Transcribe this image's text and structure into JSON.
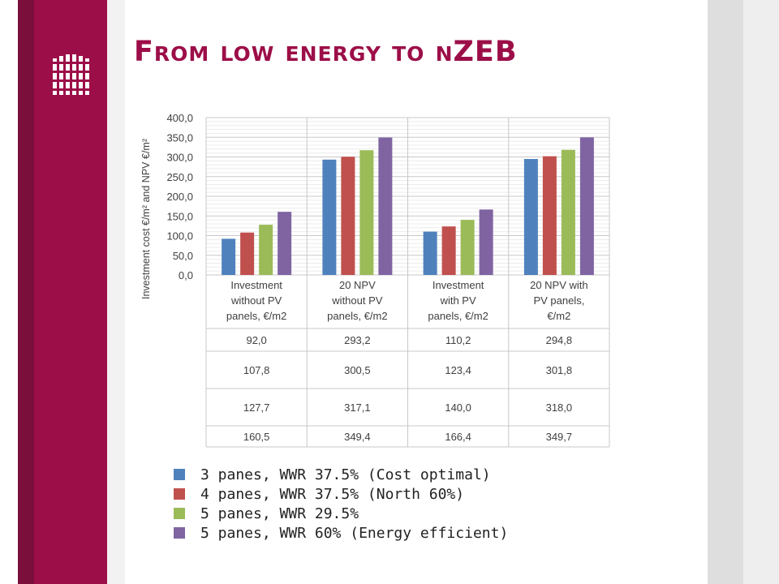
{
  "slide": {
    "title": "From low energy to nZEB"
  },
  "chart_data": {
    "type": "bar",
    "title": "",
    "xlabel": "",
    "ylabel": "Investment cost €/m² and NPV €/m²",
    "ylim": [
      0,
      400
    ],
    "yticks": [
      "0,0",
      "50,0",
      "100,0",
      "150,0",
      "200,0",
      "250,0",
      "300,0",
      "350,0",
      "400,0"
    ],
    "grid": true,
    "legend_position": "bottom-left",
    "categories": [
      [
        "Investment",
        "without PV",
        "panels, €/m2"
      ],
      [
        "20 NPV",
        "without PV",
        "panels,  €/m2"
      ],
      [
        "Investment",
        "with PV",
        "panels, €/m2"
      ],
      [
        "20 NPV with",
        "PV panels,",
        "€/m2"
      ]
    ],
    "series": [
      {
        "name": "3 panes, WWR 37.5% (Cost optimal)",
        "color": "#4f81bd",
        "values": [
          92.0,
          293.2,
          110.2,
          294.8
        ],
        "labels": [
          "92,0",
          "293,2",
          "110,2",
          "294,8"
        ]
      },
      {
        "name": "4 panes, WWR 37.5% (North 60%)",
        "color": "#c0504d",
        "values": [
          107.8,
          300.5,
          123.4,
          301.8
        ],
        "labels": [
          "107,8",
          "300,5",
          "123,4",
          "301,8"
        ]
      },
      {
        "name": "5 panes, WWR 29.5%",
        "color": "#9bbb59",
        "values": [
          127.7,
          317.1,
          140.0,
          318.0
        ],
        "labels": [
          "127,7",
          "317,1",
          "140,0",
          "318,0"
        ]
      },
      {
        "name": "5 panes, WWR 60% (Energy efficient)",
        "color": "#8064a2",
        "values": [
          160.5,
          349.4,
          166.4,
          349.7
        ],
        "labels": [
          "160,5",
          "349,4",
          "166,4",
          "349,7"
        ]
      }
    ]
  }
}
